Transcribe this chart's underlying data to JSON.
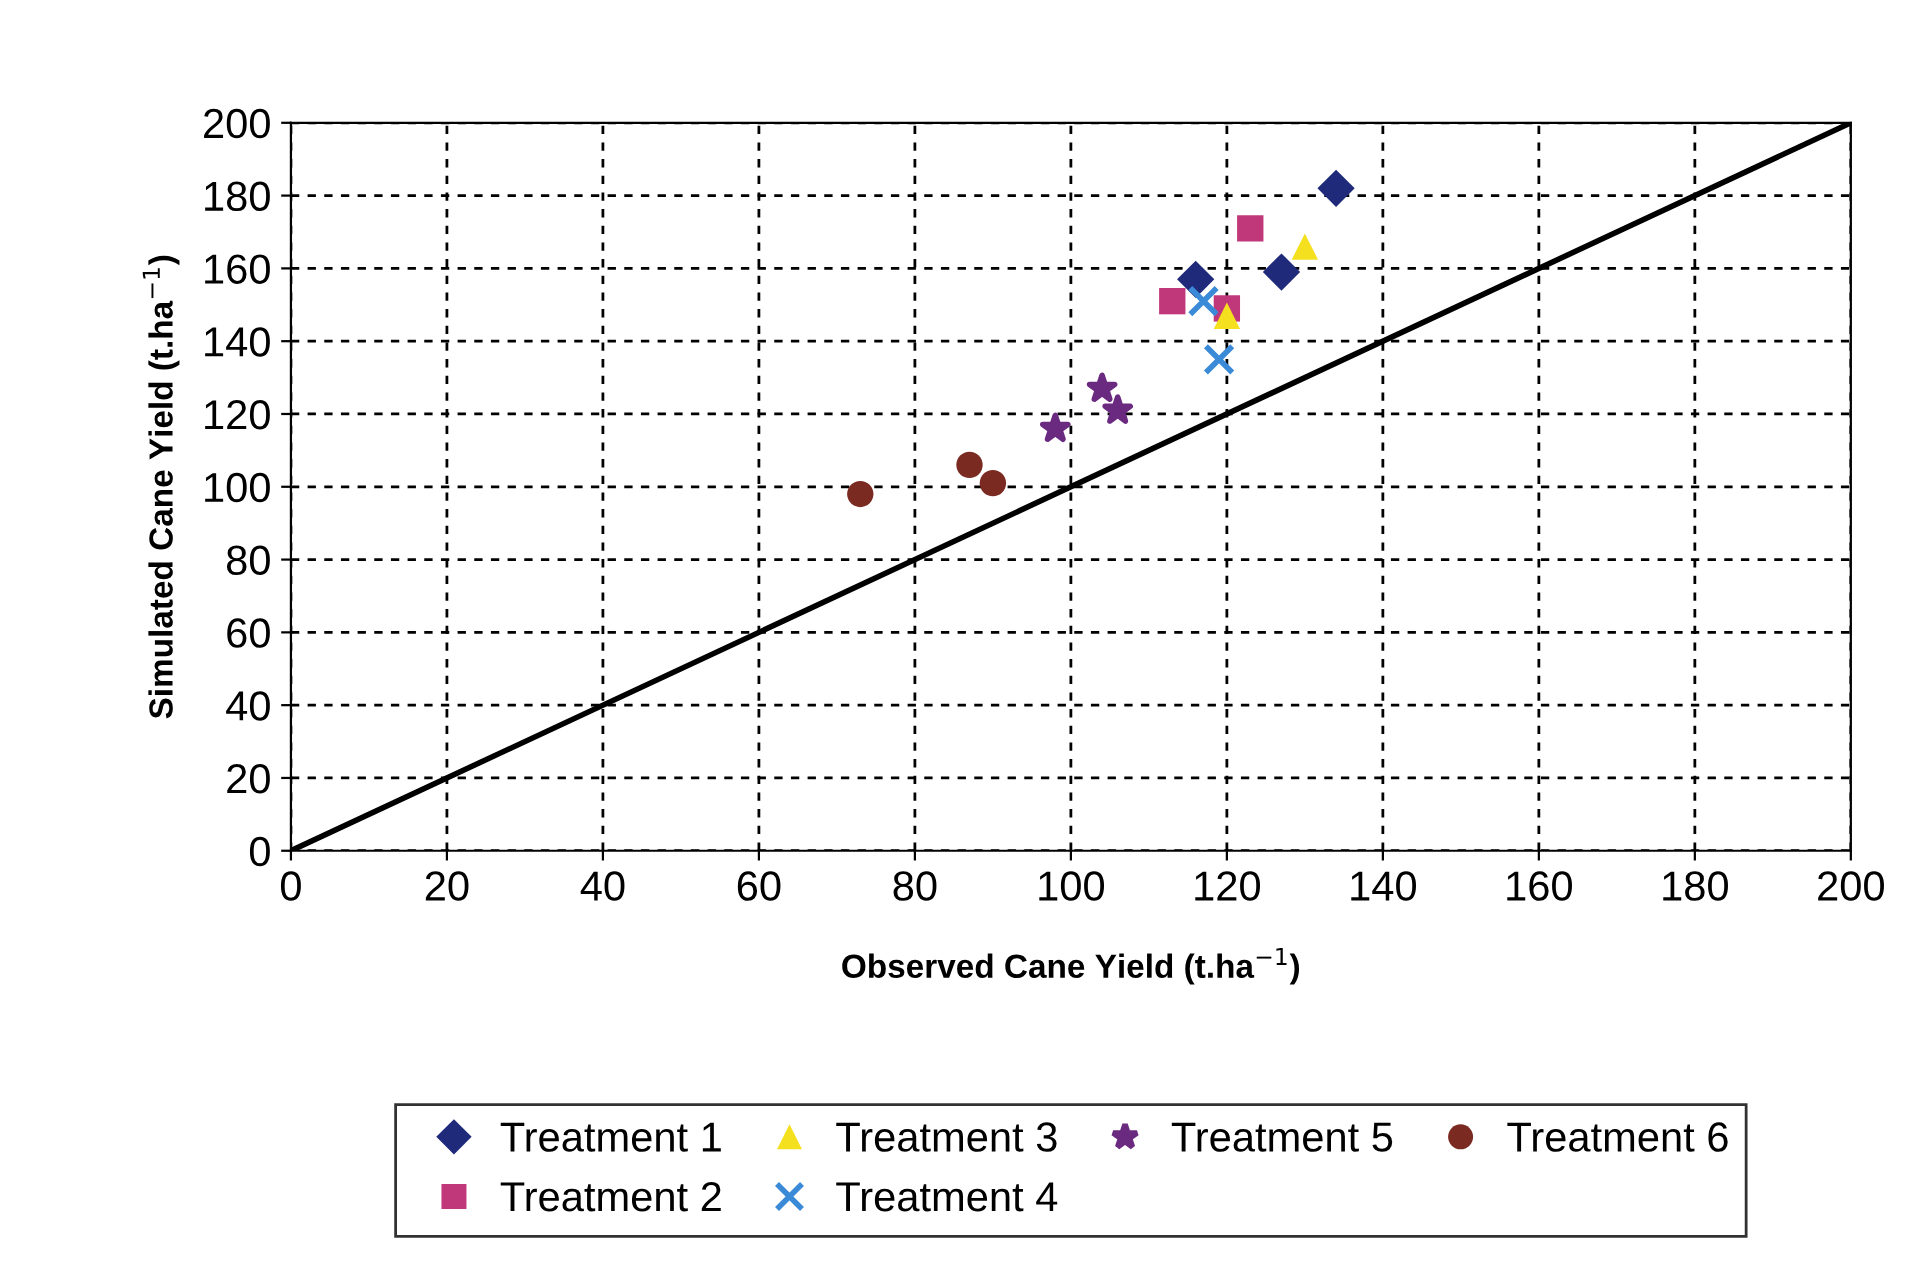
{
  "chart_data": {
    "type": "scatter",
    "xlabel": "Observed Cane Yield (t.ha$^{−1}$)",
    "ylabel": "Simulated Cane Yield (t.ha$^{−1}$)",
    "xlim": [
      0,
      200
    ],
    "ylim": [
      0,
      200
    ],
    "xticks": [
      0,
      20,
      40,
      60,
      80,
      100,
      120,
      140,
      160,
      180,
      200
    ],
    "yticks": [
      0,
      20,
      40,
      60,
      80,
      100,
      120,
      140,
      160,
      180,
      200
    ],
    "grid": true,
    "legend": "bottom",
    "series": [
      {
        "name": "Treatment 1",
        "color": "#1f2a7a",
        "marker": "diamond",
        "x": [
          134,
          116,
          127
        ],
        "values": [
          182,
          157,
          159
        ]
      },
      {
        "name": "Treatment 2",
        "color": "#c0387a",
        "marker": "square",
        "x": [
          123,
          113,
          120
        ],
        "values": [
          171,
          151,
          149
        ]
      },
      {
        "name": "Treatment 3",
        "color": "#f5e020",
        "marker": "triangle",
        "x": [
          130,
          120
        ],
        "values": [
          166,
          147
        ]
      },
      {
        "name": "Treatment 4",
        "color": "#3a8ad8",
        "marker": "cross",
        "x": [
          117,
          119
        ],
        "values": [
          151,
          135
        ]
      },
      {
        "name": "Treatment 5",
        "color": "#6a2a80",
        "marker": "star",
        "x": [
          98,
          104,
          106
        ],
        "values": [
          116,
          127,
          121
        ]
      },
      {
        "name": "Treatment 6",
        "color": "#7a2a20",
        "marker": "circle",
        "x": [
          73,
          87,
          90
        ],
        "values": [
          98,
          106,
          101
        ]
      },
      {
        "type": "line",
        "color": "#000000",
        "marker": "none",
        "line_style": "solid",
        "x": [
          0,
          200
        ],
        "values": [
          0,
          200
        ]
      }
    ]
  }
}
